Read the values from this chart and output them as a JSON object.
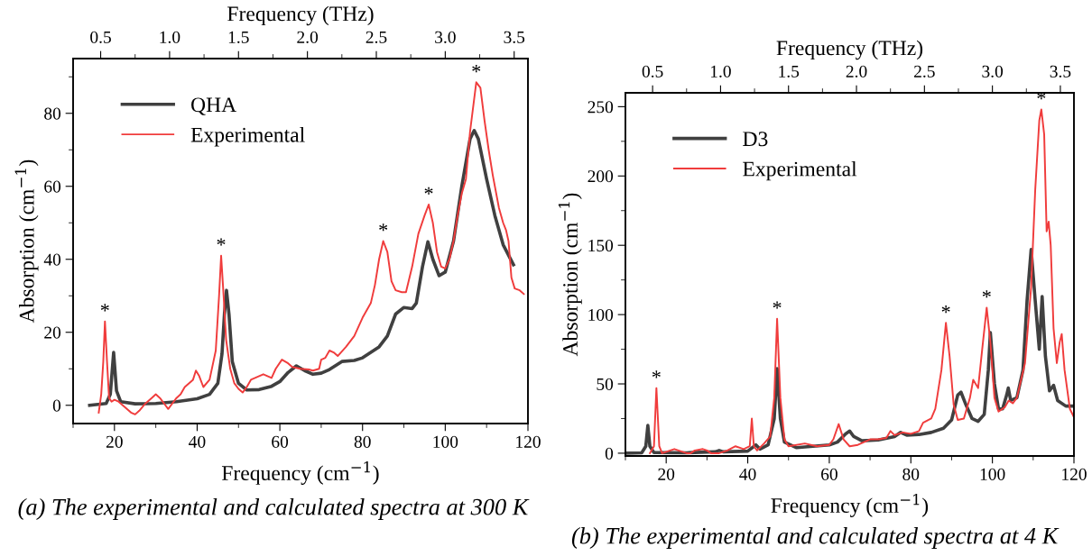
{
  "chart_data": [
    {
      "type": "line",
      "xlabel": "Frequency (cm$^{−1}$)",
      "ylabel": "Absorption (cm$^{−1}$)",
      "x2label": "Frequency (THz)",
      "xlim": [
        10,
        120
      ],
      "xticks": [
        {
          "value": 10,
          "label": null
        },
        20,
        {
          "value": 30,
          "label": null
        },
        40,
        {
          "value": 50,
          "label": null
        },
        60,
        {
          "value": 70,
          "label": null
        },
        80,
        {
          "value": 90,
          "label": null
        },
        100,
        {
          "value": 110,
          "label": null
        },
        120
      ],
      "x2lim": [
        0.3,
        3.6
      ],
      "x2ticks": [
        {
          "value": 0.5,
          "label": "0.5"
        },
        {
          "value": 0.75,
          "label": null
        },
        {
          "value": 1.0,
          "label": "1.0"
        },
        {
          "value": 1.25,
          "label": null
        },
        {
          "value": 1.5,
          "label": "1.5"
        },
        {
          "value": 1.75,
          "label": null
        },
        {
          "value": 2.0,
          "label": "2.0"
        },
        {
          "value": 2.25,
          "label": null
        },
        {
          "value": 2.5,
          "label": "2.5"
        },
        {
          "value": 2.75,
          "label": null
        },
        {
          "value": 3.0,
          "label": "3.0"
        },
        {
          "value": 3.25,
          "label": null
        },
        {
          "value": 3.5,
          "label": "3.5"
        }
      ],
      "ylim": [
        -5,
        95
      ],
      "yticks": [
        0,
        {
          "value": 10,
          "label": null
        },
        20,
        {
          "value": 30,
          "label": null
        },
        40,
        {
          "value": 50,
          "label": null
        },
        60,
        {
          "value": 70,
          "label": null
        },
        80,
        {
          "value": 90,
          "label": null
        }
      ],
      "legend": "top left",
      "series": [
        {
          "name": "QHA",
          "color": "#404040",
          "x": [
            14,
            18,
            19,
            19.8,
            20.5,
            21.5,
            25,
            30,
            35,
            40,
            43,
            45,
            46,
            46.6,
            47.1,
            47.7,
            48.5,
            50,
            52,
            55,
            58,
            60,
            62,
            64,
            66,
            68,
            70,
            72,
            75,
            78,
            80,
            84,
            86,
            88,
            90,
            92,
            93,
            94.5,
            95.8,
            97,
            98.5,
            100,
            102,
            104,
            106,
            107,
            108,
            110,
            112,
            114,
            116.5
          ],
          "values": [
            0,
            0.5,
            3,
            14.5,
            4,
            1,
            0.4,
            0.5,
            1,
            1.8,
            3,
            6,
            14,
            25,
            31.5,
            25,
            12,
            6,
            4.2,
            4.3,
            5.2,
            6.5,
            9,
            10.8,
            9.5,
            8.5,
            8.8,
            9.8,
            12,
            12.3,
            13,
            16,
            19,
            25,
            26.8,
            26.5,
            28,
            38,
            44.8,
            40,
            35.5,
            36.5,
            45,
            60,
            73,
            75.3,
            73,
            62,
            52,
            44,
            38.5
          ]
        },
        {
          "name": "Experimental",
          "color": "#f03c3c",
          "x": [
            16.2,
            16.8,
            17.3,
            17.7,
            18.2,
            18.7,
            19.3,
            20,
            21,
            22,
            23,
            24,
            25,
            26,
            27.5,
            29,
            30,
            31,
            32,
            33,
            34,
            35,
            36,
            37,
            38,
            39,
            39.7,
            40.5,
            41.5,
            43,
            44.5,
            45.3,
            45.8,
            46.4,
            47,
            48,
            49,
            50,
            51,
            52,
            53,
            54,
            56,
            58,
            59,
            60.5,
            62,
            63,
            65,
            67,
            68,
            69.5,
            70,
            71,
            72,
            73,
            74,
            76,
            78,
            80,
            82,
            83,
            84,
            85,
            86,
            87,
            88,
            89.5,
            90.5,
            92,
            93.5,
            95,
            96,
            97,
            98,
            99,
            100,
            101,
            102,
            103,
            104,
            105,
            106,
            107.5,
            108.5,
            109.5,
            110.5,
            111.5,
            113,
            114,
            114.7,
            115.3,
            116,
            116.8,
            118,
            119
          ],
          "values": [
            -2,
            3,
            12,
            23,
            12,
            2,
            1,
            1.5,
            1,
            0,
            -1,
            -2,
            -2.5,
            -1.5,
            0.5,
            2,
            3,
            2,
            0.5,
            -1,
            0.5,
            2,
            3,
            5,
            6,
            7,
            9.5,
            8,
            5,
            7,
            15,
            30,
            41,
            30,
            18,
            10,
            6,
            4.5,
            3.5,
            5,
            7,
            7.5,
            8.5,
            7.5,
            10,
            12.5,
            11.5,
            10.5,
            10,
            9.8,
            9.5,
            10,
            12.5,
            13,
            15,
            14.5,
            13.5,
            16,
            19,
            24,
            28,
            33,
            40,
            45,
            42,
            34,
            31.5,
            31,
            31,
            38,
            47,
            52,
            55,
            50,
            42,
            38,
            37.5,
            40,
            45,
            52,
            58,
            62,
            75,
            88.5,
            87,
            78,
            70,
            63,
            54,
            50,
            48,
            45,
            35,
            32,
            31.5,
            30.5
          ]
        }
      ],
      "annotations": [
        {
          "text": "*",
          "x": 17.7,
          "y": 23
        },
        {
          "text": "*",
          "x": 45.8,
          "y": 41
        },
        {
          "text": "*",
          "x": 85,
          "y": 45
        },
        {
          "text": "*",
          "x": 96,
          "y": 55
        },
        {
          "text": "*",
          "x": 107.5,
          "y": 88.5
        },
        "(a) The experimental and calculated spectra at 300 K"
      ]
    },
    {
      "type": "line",
      "xlabel": "Frequency (cm$^{−1}$)",
      "ylabel": "Absorption (cm$^{−1}$)",
      "x2label": "Frequency (THz)",
      "xlim": [
        10,
        120
      ],
      "xticks": [
        {
          "value": 10,
          "label": null
        },
        20,
        {
          "value": 30,
          "label": null
        },
        40,
        {
          "value": 50,
          "label": null
        },
        60,
        {
          "value": 70,
          "label": null
        },
        80,
        {
          "value": 90,
          "label": null
        },
        100,
        {
          "value": 110,
          "label": null
        },
        120
      ],
      "x2lim": [
        0.3,
        3.6
      ],
      "x2ticks": [
        {
          "value": 0.5,
          "label": "0.5"
        },
        {
          "value": 0.75,
          "label": null
        },
        {
          "value": 1.0,
          "label": "1.0"
        },
        {
          "value": 1.25,
          "label": null
        },
        {
          "value": 1.5,
          "label": "1.5"
        },
        {
          "value": 1.75,
          "label": null
        },
        {
          "value": 2.0,
          "label": "2.0"
        },
        {
          "value": 2.25,
          "label": null
        },
        {
          "value": 2.5,
          "label": "2.5"
        },
        {
          "value": 2.75,
          "label": null
        },
        {
          "value": 3.0,
          "label": "3.0"
        },
        {
          "value": 3.25,
          "label": null
        },
        {
          "value": 3.5,
          "label": "3.5"
        }
      ],
      "ylim": [
        -2,
        260
      ],
      "yticks": [
        0,
        {
          "value": 25,
          "label": null
        },
        50,
        {
          "value": 75,
          "label": null
        },
        100,
        {
          "value": 125,
          "label": null
        },
        150,
        {
          "value": 175,
          "label": null
        },
        200,
        {
          "value": 225,
          "label": null
        },
        250
      ],
      "legend": "top left",
      "series": [
        {
          "name": "D3",
          "color": "#404040",
          "x": [
            10,
            14,
            15,
            15.5,
            16,
            17,
            25,
            32,
            33,
            34,
            40,
            42,
            43,
            45,
            46.5,
            47.2,
            48,
            49,
            52,
            56,
            60,
            62,
            64,
            65,
            66,
            68,
            72,
            76,
            77.5,
            79,
            82,
            85,
            88,
            90,
            91.5,
            92.3,
            93.5,
            95,
            96.5,
            98,
            99,
            99.5,
            100.5,
            101.5,
            102.5,
            103.5,
            103.9,
            104.5,
            106,
            107.5,
            108.5,
            109.5,
            110.5,
            111.5,
            112.2,
            113,
            114,
            115,
            116,
            118,
            120
          ],
          "values": [
            0,
            0.3,
            5,
            20,
            5,
            0.5,
            0.3,
            1,
            2,
            1,
            1.5,
            6,
            3,
            6,
            25,
            61,
            25,
            8,
            4,
            5,
            6,
            8,
            14,
            16,
            12,
            9,
            9.5,
            12,
            15,
            13,
            13.5,
            15,
            18,
            24,
            42,
            44,
            35,
            25,
            23,
            28,
            60,
            87,
            50,
            32,
            32,
            42,
            47,
            38,
            40,
            60,
            110,
            147,
            110,
            75,
            113,
            70,
            45,
            49,
            38,
            34,
            34
          ]
        },
        {
          "name": "Experimental",
          "color": "#f03c3c",
          "x": [
            16,
            17,
            17.6,
            18.3,
            19,
            21,
            22,
            24,
            25,
            26,
            27,
            29,
            30,
            31,
            33,
            35,
            37,
            39,
            40.5,
            41,
            41.5,
            42.3,
            44,
            45.5,
            46.5,
            47.2,
            48,
            49,
            50,
            54,
            57,
            60,
            61,
            62.3,
            63.5,
            65,
            67,
            70,
            72,
            74,
            75,
            76,
            78,
            80,
            82,
            83,
            85,
            86,
            87.5,
            88.6,
            89.5,
            90.5,
            91.5,
            93,
            94.5,
            95.3,
            96.5,
            97.5,
            98.6,
            99.5,
            100.5,
            101.5,
            103,
            104,
            105,
            106,
            108,
            109.5,
            110.5,
            111.5,
            112,
            112.7,
            113.3,
            113.8,
            114.3,
            115,
            115.8,
            116.5,
            117,
            117.7,
            119,
            120
          ],
          "values": [
            0,
            5,
            47,
            5,
            0,
            2,
            3,
            1,
            0,
            0,
            2,
            3,
            2,
            0,
            0,
            2,
            5,
            3,
            5,
            25,
            5,
            2,
            7,
            12,
            40,
            97,
            40,
            10,
            5,
            7,
            5,
            6,
            10,
            21,
            10,
            5,
            6,
            10,
            10,
            11,
            16,
            13,
            15,
            14,
            16,
            22,
            25,
            32,
            60,
            94,
            70,
            35,
            24,
            25,
            40,
            53,
            47,
            75,
            105,
            80,
            40,
            30,
            33,
            38,
            36,
            40,
            65,
            120,
            190,
            240,
            248,
            230,
            160,
            167,
            150,
            90,
            65,
            80,
            86,
            60,
            32,
            26
          ]
        }
      ],
      "annotations": [
        {
          "text": "*",
          "x": 17.6,
          "y": 47
        },
        {
          "text": "*",
          "x": 47.2,
          "y": 97
        },
        {
          "text": "*",
          "x": 88.6,
          "y": 94
        },
        {
          "text": "*",
          "x": 98.6,
          "y": 105
        },
        {
          "text": "*",
          "x": 112,
          "y": 248
        },
        "(b) The experimental and calculated spectra at 4 K"
      ]
    }
  ]
}
